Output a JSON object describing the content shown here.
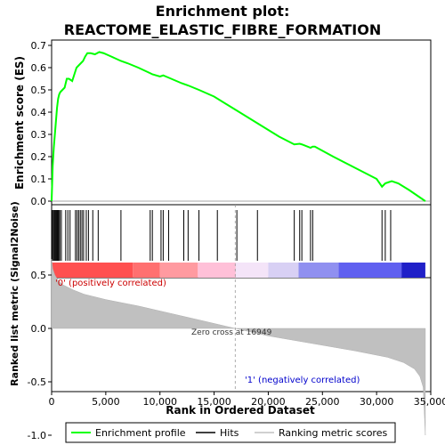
{
  "chart_data": {
    "type": "line",
    "title_line1": "Enrichment plot:",
    "title_line2": "REACTOME_ELASTIC_FIBRE_FORMATION",
    "es_ylabel": "Enrichment score (ES)",
    "metric_ylabel": "Ranked list metric (Signal2Noise)",
    "xlabel": "Rank in Ordered Dataset",
    "xlim": [
      0,
      35000
    ],
    "es_ylim": [
      0,
      0.7
    ],
    "metric_ylim": [
      -1.0,
      0.5
    ],
    "x_ticks": [
      0,
      5000,
      10000,
      15000,
      20000,
      25000,
      30000,
      35000
    ],
    "x_tick_labels": [
      "0",
      "5,000",
      "10,000",
      "15,000",
      "20,000",
      "25,000",
      "30,000",
      "35,000"
    ],
    "es_ticks": [
      0.0,
      0.1,
      0.2,
      0.3,
      0.4,
      0.5,
      0.6,
      0.7
    ],
    "es_tick_labels": [
      "0.0",
      "0.1",
      "0.2",
      "0.3",
      "0.4",
      "0.5",
      "0.6",
      "0.7"
    ],
    "metric_ticks": [
      0.5,
      0.0,
      -0.5,
      -1.0
    ],
    "metric_tick_labels": [
      "0.5",
      "0.0",
      "-0.5",
      "-1.0"
    ],
    "enrichment_profile": {
      "x": [
        0,
        100,
        200,
        300,
        400,
        500,
        600,
        700,
        800,
        1000,
        1200,
        1400,
        1600,
        1900,
        2100,
        2300,
        2500,
        2700,
        2900,
        3100,
        3300,
        3600,
        4000,
        4400,
        4800,
        5500,
        6400,
        7000,
        8000,
        9100,
        9300,
        10000,
        10300,
        10800,
        12000,
        12600,
        13600,
        15000,
        17000,
        19000,
        21000,
        22400,
        22900,
        23100,
        23900,
        24100,
        24300,
        26000,
        28000,
        30000,
        30500,
        30800,
        31100,
        31400,
        32000,
        33000,
        34500
      ],
      "y": [
        0.0,
        0.16,
        0.24,
        0.3,
        0.36,
        0.42,
        0.46,
        0.48,
        0.49,
        0.5,
        0.51,
        0.55,
        0.55,
        0.54,
        0.57,
        0.6,
        0.61,
        0.62,
        0.63,
        0.65,
        0.665,
        0.665,
        0.66,
        0.67,
        0.665,
        0.65,
        0.63,
        0.62,
        0.6,
        0.575,
        0.57,
        0.56,
        0.565,
        0.555,
        0.53,
        0.52,
        0.5,
        0.47,
        0.41,
        0.35,
        0.29,
        0.255,
        0.258,
        0.255,
        0.24,
        0.245,
        0.245,
        0.2,
        0.15,
        0.1,
        0.065,
        0.08,
        0.085,
        0.09,
        0.08,
        0.05,
        0.0
      ]
    },
    "hit_ranks": [
      80,
      180,
      260,
      340,
      420,
      500,
      580,
      660,
      760,
      900,
      1300,
      1500,
      1700,
      2200,
      2350,
      2500,
      2650,
      2800,
      2950,
      3200,
      3400,
      3800,
      4300,
      6400,
      9100,
      9300,
      10100,
      10300,
      10800,
      12200,
      12600,
      13600,
      15300,
      17100,
      19000,
      22400,
      22900,
      23100,
      23900,
      24100,
      30500,
      30800,
      31300
    ],
    "metric_curve": {
      "x": [
        0,
        100,
        300,
        600,
        1000,
        2000,
        3000,
        5000,
        8000,
        11000,
        14000,
        16949,
        20000,
        24000,
        28000,
        31000,
        32500,
        33500,
        34000,
        34300,
        34500
      ],
      "y": [
        0.65,
        0.56,
        0.5,
        0.45,
        0.41,
        0.36,
        0.32,
        0.27,
        0.21,
        0.14,
        0.07,
        0.0,
        -0.07,
        -0.14,
        -0.21,
        -0.27,
        -0.32,
        -0.38,
        -0.45,
        -0.55,
        -1.0
      ]
    },
    "zero_cross_label": "Zero cross at 16949",
    "zero_cross_x": 16949,
    "pos_label": "'0' (positively correlated)",
    "neg_label": "'1' (negatively correlated)",
    "legend": [
      {
        "label": "Enrichment profile",
        "color": "#00ff00"
      },
      {
        "label": "Hits",
        "color": "#000000"
      },
      {
        "label": "Ranking metric scores",
        "color": "#c0c0c0"
      }
    ]
  }
}
